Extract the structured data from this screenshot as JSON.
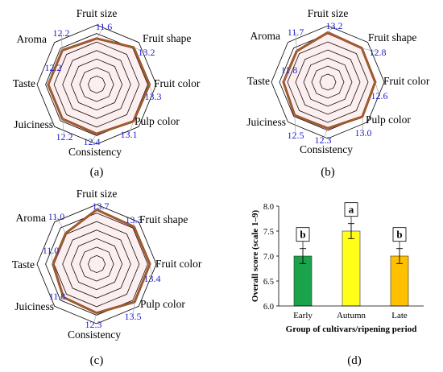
{
  "chart_data": [
    {
      "type": "radar",
      "panel_label": "(a)",
      "axes": [
        "Fruit size",
        "Fruit shape",
        "Fruit color",
        "Pulp color",
        "Consistency",
        "Juiciness",
        "Taste",
        "Aroma"
      ],
      "values": [
        11.6,
        13.2,
        13.3,
        13.1,
        12.4,
        12.2,
        12.2,
        12.2
      ],
      "value_labels": [
        "11.6",
        "13.2",
        "13.3",
        "13.1",
        "12.4",
        "12.2",
        "12.2",
        "12.2"
      ],
      "range": [
        0,
        15
      ],
      "grid_rings": 7
    },
    {
      "type": "radar",
      "panel_label": "(b)",
      "axes": [
        "Fruit size",
        "Fruit shape",
        "Fruit color",
        "Pulp color",
        "Consistency",
        "Juiciness",
        "Taste",
        "Aroma"
      ],
      "values": [
        13.2,
        12.8,
        12.6,
        13.0,
        12.3,
        12.5,
        11.8,
        11.7
      ],
      "value_labels": [
        "13.2",
        "12.8",
        "12.6",
        "13.0",
        "12.3",
        "12.5",
        "11.8",
        "11.7"
      ],
      "range": [
        0,
        15
      ],
      "grid_rings": 7
    },
    {
      "type": "radar",
      "panel_label": "(c)",
      "axes": [
        "Fruit size",
        "Fruit shape",
        "Fruit color",
        "Pulp color",
        "Consistency",
        "Juiciness",
        "Taste",
        "Aroma"
      ],
      "values": [
        13.7,
        13.3,
        13.4,
        13.5,
        12.3,
        11.8,
        11.0,
        11.0
      ],
      "value_labels": [
        "13.7",
        "13.3",
        "13.4",
        "13.5",
        "12.3",
        "11.8",
        "11.0",
        "11.0"
      ],
      "range": [
        0,
        15
      ],
      "grid_rings": 7
    },
    {
      "type": "bar",
      "panel_label": "(d)",
      "categories": [
        "Early",
        "Autumn",
        "Late"
      ],
      "values": [
        7.0,
        7.5,
        7.0
      ],
      "errors": [
        0.15,
        0.15,
        0.15
      ],
      "letters": [
        "b",
        "a",
        "b"
      ],
      "colors": [
        "#1aa34a",
        "#ffff1a",
        "#ffc000"
      ],
      "xlabel": "Group of cultivars/ripening period",
      "ylabel": "Overall score (scale 1–9)",
      "ylim": [
        6.0,
        8.0
      ],
      "yticks": [
        "6.0",
        "6.5",
        "7.0",
        "7.5",
        "8.0"
      ]
    }
  ],
  "colors": {
    "series_line": "#c0392b",
    "series_line_inner": "#5a8f2e",
    "value_label": "#1f1fd0",
    "grid": "#000000"
  }
}
